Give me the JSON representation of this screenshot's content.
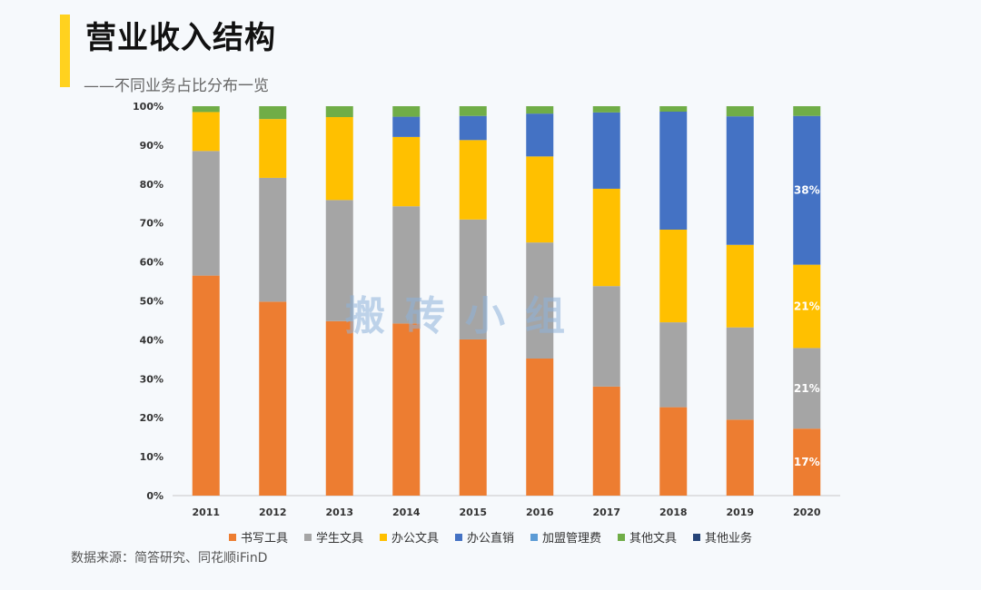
{
  "header": {
    "title": "营业收入结构",
    "subtitle": "——不同业务占比分布一览"
  },
  "watermark": "搬砖小组",
  "source": "数据来源：简答研究、同花顺iFinD",
  "chart_data": {
    "type": "bar",
    "stacked": true,
    "categories": [
      "2011",
      "2012",
      "2013",
      "2014",
      "2015",
      "2016",
      "2017",
      "2018",
      "2019",
      "2020"
    ],
    "ylim": [
      0,
      100
    ],
    "yticks": [
      "0%",
      "10%",
      "20%",
      "30%",
      "40%",
      "50%",
      "60%",
      "70%",
      "80%",
      "90%",
      "100%"
    ],
    "legend_position": "bottom",
    "series": [
      {
        "name": "书写工具",
        "color": "#ed7d31",
        "values": [
          56.5,
          49.8,
          44.8,
          44.2,
          40.1,
          35.2,
          28.0,
          22.7,
          19.5,
          17.2
        ]
      },
      {
        "name": "学生文具",
        "color": "#a5a5a5",
        "values": [
          32.0,
          31.8,
          31.1,
          30.1,
          30.8,
          29.8,
          25.8,
          21.8,
          23.7,
          20.7
        ]
      },
      {
        "name": "办公文具",
        "color": "#ffc000",
        "values": [
          10.0,
          15.1,
          21.3,
          17.8,
          20.4,
          22.1,
          25.0,
          23.8,
          21.2,
          21.4
        ]
      },
      {
        "name": "办公直销",
        "color": "#4472c4",
        "values": [
          0,
          0,
          0,
          5.2,
          6.2,
          11.0,
          19.6,
          30.3,
          33.0,
          38.2
        ]
      },
      {
        "name": "加盟管理费",
        "color": "#5b9bd5",
        "values": [
          0,
          0,
          0,
          0,
          0,
          0,
          0,
          0,
          0,
          0
        ]
      },
      {
        "name": "其他文具",
        "color": "#70ad47",
        "values": [
          1.5,
          3.3,
          2.8,
          2.7,
          2.5,
          1.9,
          1.6,
          1.4,
          2.6,
          2.5
        ]
      },
      {
        "name": "其他业务",
        "color": "#264478",
        "values": [
          0,
          0,
          0,
          0,
          0,
          0,
          0,
          0,
          0,
          0
        ]
      }
    ],
    "data_labels": [
      {
        "category": "2020",
        "series": "书写工具",
        "text": "17%"
      },
      {
        "category": "2020",
        "series": "学生文具",
        "text": "21%"
      },
      {
        "category": "2020",
        "series": "办公文具",
        "text": "21%"
      },
      {
        "category": "2020",
        "series": "办公直销",
        "text": "38%"
      }
    ]
  }
}
